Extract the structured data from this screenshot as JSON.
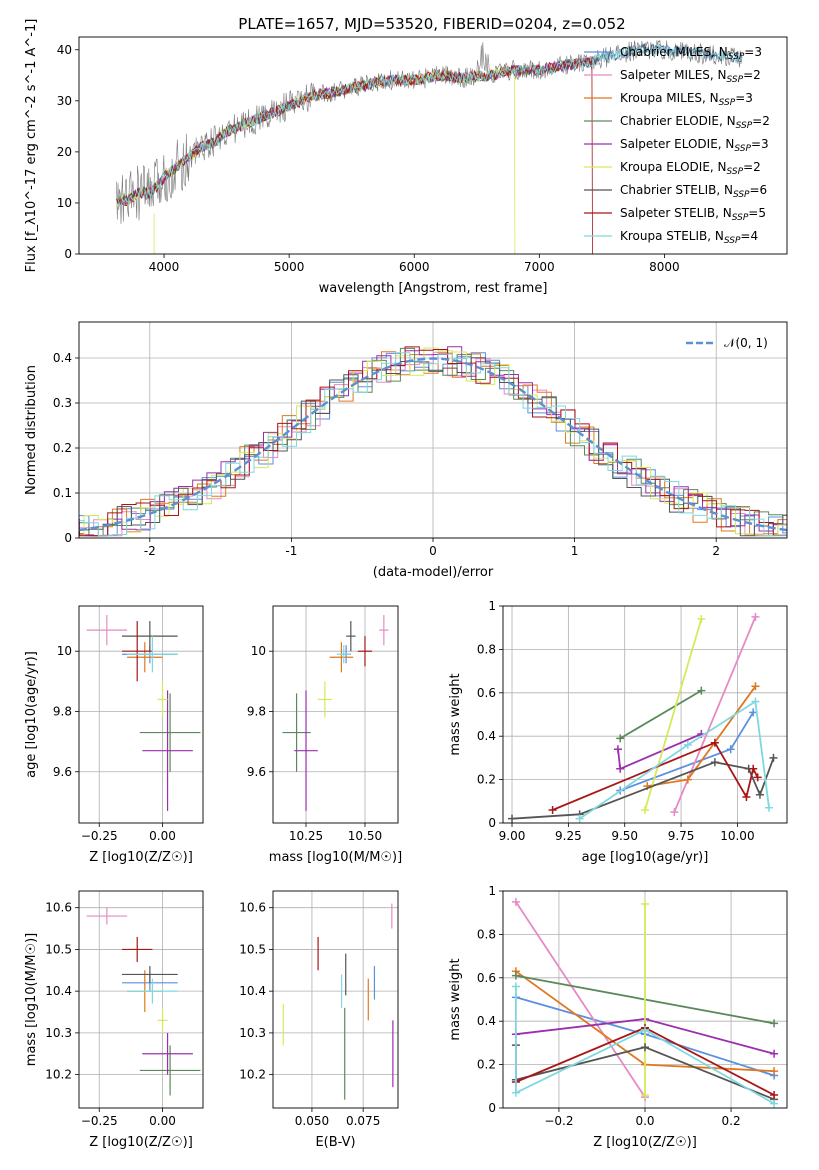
{
  "figure_title": "PLATE=1657, MJD=53520, FIBERID=0204, z=0.052",
  "colors": {
    "chabrier_miles": "#5b8fe0",
    "salpeter_miles": "#e78ac3",
    "kroupa_miles": "#e0781f",
    "chabrier_elodie": "#5a8a5a",
    "salpeter_elodie": "#9b2fb0",
    "kroupa_elodie": "#d4ea5a",
    "chabrier_stelib": "#555555",
    "salpeter_stelib": "#a81616",
    "kroupa_stelib": "#7fd8e0",
    "normal_curve": "#5b8fd6"
  },
  "chart_data": [
    {
      "id": "spectrum",
      "type": "line",
      "xlabel": "wavelength [Angstrom, rest frame]",
      "ylabel": "Flux [f_λ10^-17 erg cm^-2 s^-1 A^-1]",
      "xlim": [
        3320,
        8980
      ],
      "ylim": [
        0,
        42.5
      ],
      "xticks": [
        4000,
        5000,
        6000,
        7000,
        8000
      ],
      "yticks": [
        0,
        10,
        20,
        30,
        40
      ],
      "grid": false,
      "legend_position": "right",
      "legend": [
        "Chabrier MILES, N_SSP=3",
        "Salpeter MILES, N_SSP=2",
        "Kroupa MILES, N_SSP=3",
        "Chabrier ELODIE, N_SSP=2",
        "Salpeter ELODIE, N_SSP=3",
        "Kroupa ELODIE, N_SSP=2",
        "Chabrier STELIB, N_SSP=6",
        "Salpeter STELIB, N_SSP=5",
        "Kroupa STELIB, N_SSP=4"
      ],
      "continuum_x": [
        3600,
        3700,
        3800,
        3900,
        4000,
        4100,
        4200,
        4300,
        4400,
        4500,
        4600,
        4800,
        5000,
        5200,
        5400,
        5600,
        5800,
        6000,
        6200,
        6400,
        6600,
        6800,
        7000,
        7200,
        7400,
        7600,
        7800,
        8000,
        8200,
        8400,
        8600,
        8800
      ],
      "continuum_y": [
        10,
        10.5,
        12,
        12,
        15,
        17,
        19,
        21,
        22,
        24,
        25,
        27,
        29,
        31,
        32,
        33,
        34,
        34,
        35,
        34.5,
        35,
        36,
        36,
        37,
        37.5,
        39,
        40,
        40,
        39.5,
        39,
        38.5,
        38
      ]
    },
    {
      "id": "residuals",
      "type": "line",
      "xlabel": "(data-model)/error",
      "ylabel": "Normed distribution",
      "xlim": [
        -2.5,
        2.5
      ],
      "ylim": [
        0,
        0.48
      ],
      "xticks": [
        -2,
        -1,
        0,
        1,
        2
      ],
      "yticks": [
        0.0,
        0.1,
        0.2,
        0.3,
        0.4
      ],
      "grid": true,
      "legend": [
        "𝒩(0, 1)"
      ],
      "legend_position": "top-right",
      "histogram_bin_width": 0.1,
      "normal_mean": 0,
      "normal_sigma": 1
    },
    {
      "id": "age_vs_z",
      "type": "scatter",
      "xlabel": "Z [log10(Z/Z☉)]",
      "ylabel": "age [log10(age/yr)]",
      "xlim": [
        -0.33,
        0.16
      ],
      "ylim": [
        9.43,
        10.15
      ],
      "xticks": [
        -0.25,
        0.0
      ],
      "xtick_labels": [
        "−0.25",
        "0.00"
      ],
      "yticks": [
        9.6,
        9.8,
        10.0
      ],
      "grid": true,
      "points": [
        {
          "series": "chabrier_miles",
          "x": -0.05,
          "y": 9.99,
          "xerr": 0.11,
          "yerr": 0.03
        },
        {
          "series": "salpeter_miles",
          "x": -0.22,
          "y": 10.07,
          "xerr": 0.08,
          "yerr": 0.05
        },
        {
          "series": "kroupa_miles",
          "x": -0.07,
          "y": 9.98,
          "xerr": 0.07,
          "yerr": 0.05
        },
        {
          "series": "chabrier_elodie",
          "x": 0.03,
          "y": 9.73,
          "xerr": 0.12,
          "yerr": 0.13
        },
        {
          "series": "salpeter_elodie",
          "x": 0.02,
          "y": 9.67,
          "xerr": 0.1,
          "yerr": 0.2
        },
        {
          "series": "kroupa_elodie",
          "x": 0.0,
          "y": 9.84,
          "xerr": 0.02,
          "yerr": 0.06
        },
        {
          "series": "chabrier_stelib",
          "x": -0.05,
          "y": 10.05,
          "xerr": 0.11,
          "yerr": 0.05
        },
        {
          "series": "salpeter_stelib",
          "x": -0.1,
          "y": 10.0,
          "xerr": 0.06,
          "yerr": 0.1
        },
        {
          "series": "kroupa_stelib",
          "x": -0.04,
          "y": 9.99,
          "xerr": 0.1,
          "yerr": 0.06
        }
      ]
    },
    {
      "id": "age_vs_mass",
      "type": "scatter",
      "xlabel": "mass [log10(M/M☉)]",
      "ylabel": "",
      "xlim": [
        10.11,
        10.64
      ],
      "ylim": [
        9.43,
        10.15
      ],
      "xticks": [
        10.25,
        10.5
      ],
      "xtick_labels": [
        "10.25",
        "10.50"
      ],
      "yticks": [
        9.6,
        9.8,
        10.0
      ],
      "grid": true,
      "points": [
        {
          "series": "chabrier_miles",
          "x": 10.42,
          "y": 9.99,
          "xerr": 0.02,
          "yerr": 0.03
        },
        {
          "series": "salpeter_miles",
          "x": 10.58,
          "y": 10.07,
          "xerr": 0.02,
          "yerr": 0.05
        },
        {
          "series": "kroupa_miles",
          "x": 10.4,
          "y": 9.98,
          "xerr": 0.05,
          "yerr": 0.05
        },
        {
          "series": "chabrier_elodie",
          "x": 10.21,
          "y": 9.73,
          "xerr": 0.06,
          "yerr": 0.13
        },
        {
          "series": "salpeter_elodie",
          "x": 10.25,
          "y": 9.67,
          "xerr": 0.05,
          "yerr": 0.2
        },
        {
          "series": "kroupa_elodie",
          "x": 10.33,
          "y": 9.84,
          "xerr": 0.03,
          "yerr": 0.06
        },
        {
          "series": "chabrier_stelib",
          "x": 10.44,
          "y": 10.05,
          "xerr": 0.02,
          "yerr": 0.05
        },
        {
          "series": "salpeter_stelib",
          "x": 10.5,
          "y": 10.0,
          "xerr": 0.03,
          "yerr": 0.05
        },
        {
          "series": "kroupa_stelib",
          "x": 10.41,
          "y": 9.99,
          "xerr": 0.03,
          "yerr": 0.03
        }
      ]
    },
    {
      "id": "weight_vs_age",
      "type": "line",
      "xlabel": "age [log10(age/yr)]",
      "ylabel": "mass weight",
      "xlim": [
        8.96,
        10.22
      ],
      "ylim": [
        0,
        1
      ],
      "xticks": [
        9.0,
        9.25,
        9.5,
        9.75,
        10.0
      ],
      "xtick_labels": [
        "9.00",
        "9.25",
        "9.50",
        "9.75",
        "10.00"
      ],
      "yticks": [
        0.0,
        0.2,
        0.4,
        0.6,
        0.8,
        1.0
      ],
      "grid": true,
      "series": [
        {
          "series": "chabrier_miles",
          "x": [
            9.48,
            9.97,
            10.07
          ],
          "y": [
            0.15,
            0.34,
            0.51
          ]
        },
        {
          "series": "salpeter_miles",
          "x": [
            9.72,
            10.08
          ],
          "y": [
            0.05,
            0.95
          ]
        },
        {
          "series": "kroupa_miles",
          "x": [
            9.6,
            9.78,
            10.08
          ],
          "y": [
            0.17,
            0.2,
            0.63
          ]
        },
        {
          "series": "chabrier_elodie",
          "x": [
            9.48,
            9.84
          ],
          "y": [
            0.39,
            0.61
          ]
        },
        {
          "series": "salpeter_elodie",
          "x": [
            9.47,
            9.48,
            9.84
          ],
          "y": [
            0.34,
            0.25,
            0.41
          ]
        },
        {
          "series": "kroupa_elodie",
          "x": [
            9.59,
            9.84
          ],
          "y": [
            0.06,
            0.94
          ]
        },
        {
          "series": "chabrier_stelib",
          "x": [
            9.0,
            9.3,
            9.9,
            10.05,
            10.1,
            10.16
          ],
          "y": [
            0.02,
            0.04,
            0.28,
            0.25,
            0.13,
            0.3
          ]
        },
        {
          "series": "salpeter_stelib",
          "x": [
            9.18,
            9.9,
            10.04,
            10.07,
            10.09
          ],
          "y": [
            0.06,
            0.37,
            0.12,
            0.25,
            0.21
          ]
        },
        {
          "series": "kroupa_stelib",
          "x": [
            9.3,
            9.78,
            10.08,
            10.14
          ],
          "y": [
            0.02,
            0.36,
            0.56,
            0.07
          ]
        }
      ]
    },
    {
      "id": "mass_vs_z",
      "type": "scatter",
      "xlabel": "Z [log10(Z/Z☉)]",
      "ylabel": "mass [log10(M/M☉)]",
      "xlim": [
        -0.33,
        0.16
      ],
      "ylim": [
        10.12,
        10.64
      ],
      "xticks": [
        -0.25,
        0.0
      ],
      "xtick_labels": [
        "−0.25",
        "0.00"
      ],
      "yticks": [
        10.2,
        10.3,
        10.4,
        10.5,
        10.6
      ],
      "grid": true,
      "points": [
        {
          "series": "chabrier_miles",
          "x": -0.05,
          "y": 10.42,
          "xerr": 0.11,
          "yerr": 0.02
        },
        {
          "series": "salpeter_miles",
          "x": -0.22,
          "y": 10.58,
          "xerr": 0.08,
          "yerr": 0.02
        },
        {
          "series": "kroupa_miles",
          "x": -0.07,
          "y": 10.4,
          "xerr": 0.07,
          "yerr": 0.05
        },
        {
          "series": "chabrier_elodie",
          "x": 0.03,
          "y": 10.21,
          "xerr": 0.12,
          "yerr": 0.06
        },
        {
          "series": "salpeter_elodie",
          "x": 0.02,
          "y": 10.25,
          "xerr": 0.1,
          "yerr": 0.05
        },
        {
          "series": "kroupa_elodie",
          "x": 0.0,
          "y": 10.33,
          "xerr": 0.02,
          "yerr": 0.03
        },
        {
          "series": "chabrier_stelib",
          "x": -0.05,
          "y": 10.44,
          "xerr": 0.11,
          "yerr": 0.02
        },
        {
          "series": "salpeter_stelib",
          "x": -0.1,
          "y": 10.5,
          "xerr": 0.06,
          "yerr": 0.03
        },
        {
          "series": "kroupa_stelib",
          "x": -0.04,
          "y": 10.4,
          "xerr": 0.1,
          "yerr": 0.03
        }
      ]
    },
    {
      "id": "mass_vs_ebv",
      "type": "scatter",
      "xlabel": "E(B-V)",
      "ylabel": "",
      "xlim": [
        0.031,
        0.092
      ],
      "ylim": [
        10.12,
        10.64
      ],
      "xticks": [
        0.05,
        0.075
      ],
      "xtick_labels": [
        "0.050",
        "0.075"
      ],
      "yticks": [
        10.2,
        10.3,
        10.4,
        10.5,
        10.6
      ],
      "grid": true,
      "points": [
        {
          "series": "chabrier_miles",
          "x": 0.0805,
          "y": 10.42,
          "yerr": 0.04
        },
        {
          "series": "salpeter_miles",
          "x": 0.089,
          "y": 10.58,
          "yerr": 0.03
        },
        {
          "series": "kroupa_miles",
          "x": 0.0775,
          "y": 10.38,
          "yerr": 0.05
        },
        {
          "series": "chabrier_elodie",
          "x": 0.066,
          "y": 10.25,
          "yerr": 0.11
        },
        {
          "series": "salpeter_elodie",
          "x": 0.0895,
          "y": 10.25,
          "yerr": 0.08
        },
        {
          "series": "kroupa_elodie",
          "x": 0.036,
          "y": 10.32,
          "yerr": 0.05
        },
        {
          "series": "chabrier_stelib",
          "x": 0.0665,
          "y": 10.44,
          "yerr": 0.05
        },
        {
          "series": "salpeter_stelib",
          "x": 0.053,
          "y": 10.49,
          "yerr": 0.04
        },
        {
          "series": "kroupa_stelib",
          "x": 0.0645,
          "y": 10.4,
          "yerr": 0.04
        }
      ]
    },
    {
      "id": "weight_vs_z",
      "type": "line",
      "xlabel": "Z [log10(Z/Z☉)]",
      "ylabel": "mass weight",
      "xlim": [
        -0.33,
        0.33
      ],
      "ylim": [
        0,
        1
      ],
      "xticks": [
        -0.2,
        0.0,
        0.2
      ],
      "xtick_labels": [
        "−0.2",
        "0.0",
        "0.2"
      ],
      "yticks": [
        0.0,
        0.2,
        0.4,
        0.6,
        0.8,
        1.0
      ],
      "grid": true,
      "series": [
        {
          "series": "chabrier_miles",
          "x": [
            -0.3,
            0.0,
            0.3
          ],
          "y": [
            0.51,
            0.34,
            0.15
          ]
        },
        {
          "series": "salpeter_miles",
          "x": [
            -0.3,
            0.0
          ],
          "y": [
            0.95,
            0.05
          ]
        },
        {
          "series": "kroupa_miles",
          "x": [
            -0.3,
            0.0,
            0.3
          ],
          "y": [
            0.63,
            0.2,
            0.17
          ]
        },
        {
          "series": "chabrier_elodie",
          "x": [
            -0.3,
            0.3
          ],
          "y": [
            0.61,
            0.39
          ]
        },
        {
          "series": "salpeter_elodie",
          "x": [
            -0.3,
            0.0,
            0.3
          ],
          "y": [
            0.34,
            0.41,
            0.25
          ]
        },
        {
          "series": "kroupa_elodie",
          "x": [
            0.0,
            0.0
          ],
          "y": [
            0.06,
            0.94
          ]
        },
        {
          "series": "chabrier_stelib",
          "x": [
            -0.3,
            -0.3,
            0.0,
            0.3
          ],
          "y": [
            0.29,
            0.13,
            0.28,
            0.04
          ]
        },
        {
          "series": "salpeter_stelib",
          "x": [
            -0.3,
            0.0,
            0.3
          ],
          "y": [
            0.12,
            0.37,
            0.06
          ]
        },
        {
          "series": "kroupa_stelib",
          "x": [
            -0.3,
            -0.3,
            0.0,
            0.3
          ],
          "y": [
            0.56,
            0.07,
            0.36,
            0.02
          ]
        }
      ]
    }
  ]
}
